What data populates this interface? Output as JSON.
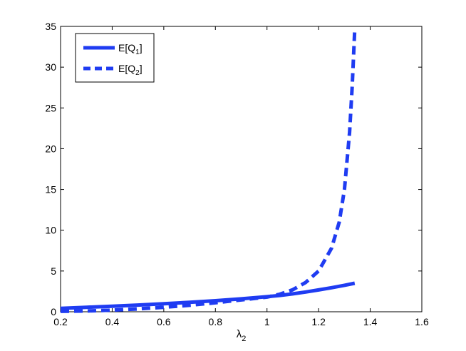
{
  "chart_data": {
    "type": "line",
    "title": "",
    "xlabel": "λ",
    "xlabel_sub": "2",
    "ylabel": "",
    "xlim": [
      0.2,
      1.6
    ],
    "ylim": [
      0,
      35
    ],
    "xticks": [
      "0.2",
      "0.4",
      "0.6",
      "0.8",
      "1",
      "1.2",
      "1.4",
      "1.6"
    ],
    "yticks": [
      "0",
      "5",
      "10",
      "15",
      "20",
      "25",
      "30",
      "35"
    ],
    "grid": false,
    "legend_position": "top-left",
    "series": [
      {
        "name": "E[Q",
        "name_sub": "1",
        "name_end": "]",
        "style": "solid",
        "color": "#1f3cf2",
        "x": [
          0.2,
          0.3,
          0.4,
          0.5,
          0.6,
          0.7,
          0.8,
          0.9,
          1.0,
          1.05,
          1.1,
          1.15,
          1.2,
          1.25,
          1.3,
          1.34
        ],
        "y": [
          0.42,
          0.55,
          0.68,
          0.82,
          0.98,
          1.16,
          1.36,
          1.58,
          1.85,
          2.0,
          2.2,
          2.42,
          2.68,
          2.95,
          3.25,
          3.5
        ]
      },
      {
        "name": "E[Q",
        "name_sub": "2",
        "name_end": "]",
        "style": "dashed",
        "color": "#1f3cf2",
        "x": [
          0.2,
          0.3,
          0.4,
          0.5,
          0.6,
          0.7,
          0.8,
          0.9,
          1.0,
          1.05,
          1.1,
          1.15,
          1.2,
          1.25,
          1.28,
          1.3,
          1.32,
          1.33,
          1.34
        ],
        "y": [
          0.05,
          0.1,
          0.2,
          0.35,
          0.55,
          0.8,
          1.1,
          1.45,
          1.8,
          2.15,
          2.7,
          3.6,
          5.0,
          7.8,
          11.0,
          15.0,
          22.0,
          27.5,
          34.5
        ]
      }
    ]
  },
  "colors": {
    "series": "#1f3cf2",
    "axes": "#000000",
    "background": "#ffffff"
  }
}
